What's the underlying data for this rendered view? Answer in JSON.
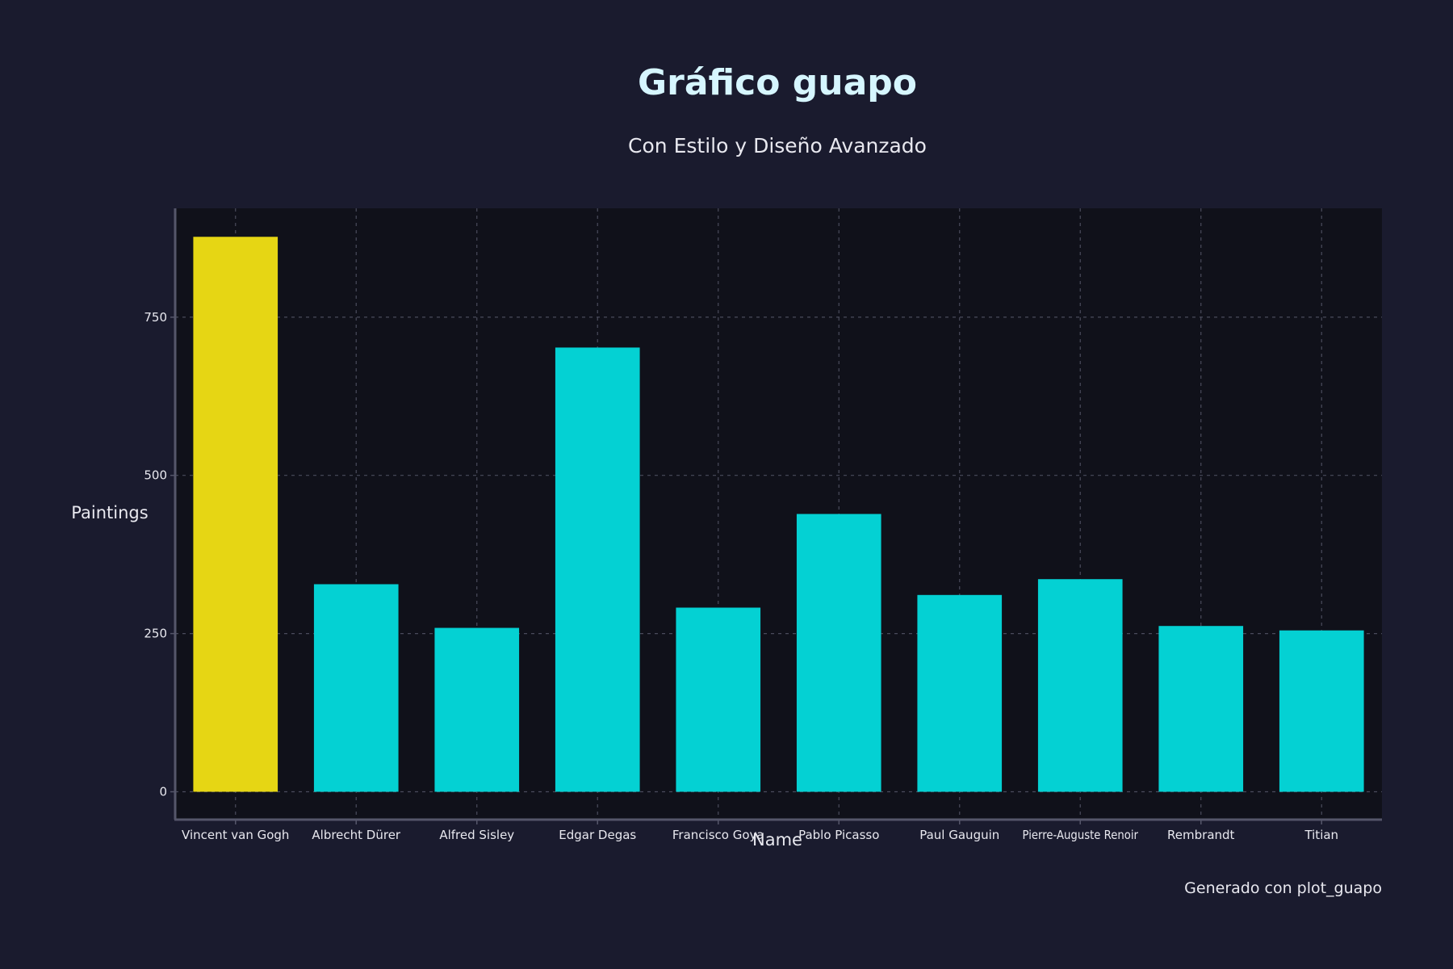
{
  "chart_data": {
    "type": "bar",
    "title": "Gráfico guapo",
    "subtitle": "Con Estilo y Diseño Avanzado",
    "xlabel": "Name",
    "ylabel": "Paintings",
    "footer": "Generado con plot_guapo",
    "categories": [
      "Vincent van Gogh",
      "Albrecht Dürer",
      "Alfred Sisley",
      "Edgar Degas",
      "Francisco Goya",
      "Pablo Picasso",
      "Paul Gauguin",
      "Pierre-Auguste Renoir",
      "Rembrandt",
      "Titian"
    ],
    "values": [
      877,
      328,
      259,
      702,
      291,
      439,
      311,
      336,
      262,
      255
    ],
    "highlight_index": 0,
    "ylim": [
      -44,
      922
    ],
    "yticks": [
      0,
      250,
      500,
      750
    ],
    "grid": true,
    "legend": "none",
    "colors": {
      "background": "#1a1b2e",
      "plot_background": "#10111a",
      "bar": "#04d1d3",
      "highlight": "#e6d614",
      "title": "#d6f6ff",
      "text": "#e8e8ef",
      "grid": "#4a4b5c",
      "axis": "#55566a"
    }
  }
}
